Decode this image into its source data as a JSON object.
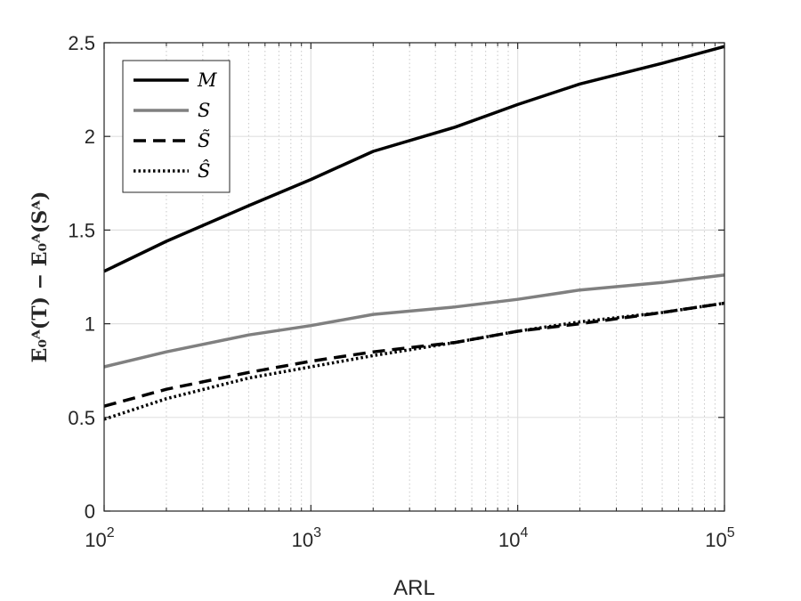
{
  "chart_data": {
    "type": "line",
    "title": "",
    "xlabel": "ARL",
    "ylabel": "E₀ᴬ(T) − E₀ᴬ(Sᴬ)",
    "xscale": "log",
    "xlim": [
      100,
      100000
    ],
    "ylim": [
      0,
      2.5
    ],
    "grid": true,
    "legend_position": "top-left",
    "xticks": [
      {
        "value": 100,
        "base": "10",
        "exp": "2"
      },
      {
        "value": 1000,
        "base": "10",
        "exp": "3"
      },
      {
        "value": 10000,
        "base": "10",
        "exp": "4"
      },
      {
        "value": 100000,
        "base": "10",
        "exp": "5"
      }
    ],
    "yticks": [
      {
        "value": 0,
        "label": "0"
      },
      {
        "value": 0.5,
        "label": "0.5"
      },
      {
        "value": 1,
        "label": "1"
      },
      {
        "value": 1.5,
        "label": "1.5"
      },
      {
        "value": 2,
        "label": "2"
      },
      {
        "value": 2.5,
        "label": "2.5"
      }
    ],
    "x": [
      100,
      200,
      500,
      1000,
      2000,
      5000,
      10000,
      20000,
      50000,
      100000
    ],
    "series": [
      {
        "name": "M",
        "color": "#000000",
        "style": "solid",
        "values": [
          1.28,
          1.44,
          1.63,
          1.77,
          1.92,
          2.05,
          2.17,
          2.28,
          2.39,
          2.48
        ]
      },
      {
        "name": "S",
        "color": "#808080",
        "style": "solid",
        "values": [
          0.77,
          0.85,
          0.94,
          0.99,
          1.05,
          1.09,
          1.13,
          1.18,
          1.22,
          1.26
        ]
      },
      {
        "name": "S̃",
        "color": "#000000",
        "style": "dashed",
        "values": [
          0.56,
          0.65,
          0.74,
          0.8,
          0.85,
          0.9,
          0.96,
          1.0,
          1.06,
          1.11
        ]
      },
      {
        "name": "Ŝ",
        "color": "#000000",
        "style": "dotted",
        "values": [
          0.49,
          0.6,
          0.71,
          0.77,
          0.83,
          0.9,
          0.96,
          1.01,
          1.06,
          1.11
        ]
      }
    ]
  }
}
